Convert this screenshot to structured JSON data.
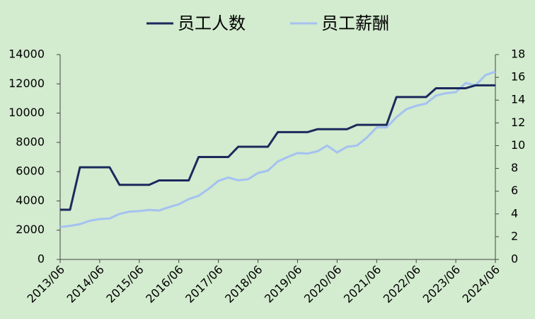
{
  "chart_data": {
    "type": "line",
    "categories": [
      "2013/06",
      null,
      null,
      null,
      "2014/06",
      null,
      null,
      null,
      "2015/06",
      null,
      null,
      null,
      "2016/06",
      null,
      null,
      null,
      "2017/06",
      null,
      null,
      null,
      "2018/06",
      null,
      null,
      null,
      "2019/06",
      null,
      null,
      null,
      "2020/06",
      null,
      null,
      null,
      "2021/06",
      null,
      null,
      null,
      "2022/06",
      null,
      null,
      null,
      "2023/06",
      null,
      null,
      null,
      "2024/06"
    ],
    "series": [
      {
        "name": "员工人数",
        "color": "#1b2a5c",
        "values": [
          3400,
          3400,
          6300,
          6300,
          6300,
          6300,
          5100,
          5100,
          5100,
          5100,
          5400,
          5400,
          5400,
          5400,
          7000,
          7000,
          7000,
          7000,
          7700,
          7700,
          7700,
          7700,
          8700,
          8700,
          8700,
          8700,
          8900,
          8900,
          8900,
          8900,
          9200,
          9200,
          9200,
          9200,
          11100,
          11100,
          11100,
          11100,
          11700,
          11700,
          11700,
          11700,
          11900,
          11900,
          11900
        ]
      },
      {
        "name": "员工薪酬",
        "color": "#a4c2f0",
        "axis": "y2",
        "values": [
          2.85,
          2.95,
          3.1,
          3.4,
          3.55,
          3.6,
          4.0,
          4.2,
          4.25,
          4.35,
          4.3,
          4.6,
          4.85,
          5.3,
          5.6,
          6.2,
          6.9,
          7.2,
          6.95,
          7.05,
          7.6,
          7.8,
          8.6,
          9.0,
          9.35,
          9.3,
          9.5,
          10.0,
          9.4,
          9.9,
          10.0,
          10.7,
          11.6,
          11.6,
          12.5,
          13.2,
          13.5,
          13.7,
          14.4,
          14.6,
          14.7,
          15.5,
          15.3,
          16.2,
          16.5
        ]
      }
    ],
    "ylim": [
      0,
      14000
    ],
    "yticks": [
      0,
      2000,
      4000,
      6000,
      8000,
      10000,
      12000,
      14000
    ],
    "y2lim": [
      0,
      18
    ],
    "y2ticks": [
      0,
      2,
      4,
      6,
      8,
      10,
      12,
      14,
      16,
      18
    ],
    "grid": false,
    "legend": "top"
  }
}
